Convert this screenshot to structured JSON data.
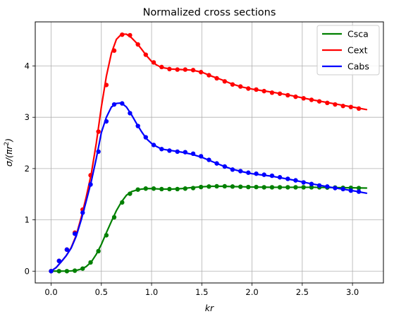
{
  "chart_data": {
    "type": "line",
    "title": "Normalized cross sections",
    "xlabel": "kr",
    "ylabel": "σ/(πr²)",
    "xlim": [
      -0.158,
      3.308
    ],
    "ylim": [
      -0.23,
      4.86
    ],
    "xticks": [
      0.0,
      0.5,
      1.0,
      1.5,
      2.0,
      2.5,
      3.0
    ],
    "xtick_labels": [
      "0.0",
      "0.5",
      "1.0",
      "1.5",
      "2.0",
      "2.5",
      "3.0"
    ],
    "yticks": [
      0,
      1,
      2,
      3,
      4
    ],
    "ytick_labels": [
      "0",
      "1",
      "2",
      "3",
      "4"
    ],
    "grid": true,
    "legend_position": "top-right",
    "series": [
      {
        "name": "Csca",
        "color": "#008000",
        "curve": [
          [
            0,
            0
          ],
          [
            0.05,
            0.0
          ],
          [
            0.1,
            0.0
          ],
          [
            0.15,
            0.001
          ],
          [
            0.2,
            0.005
          ],
          [
            0.25,
            0.015
          ],
          [
            0.3,
            0.04
          ],
          [
            0.35,
            0.09
          ],
          [
            0.4,
            0.18
          ],
          [
            0.45,
            0.33
          ],
          [
            0.5,
            0.52
          ],
          [
            0.55,
            0.75
          ],
          [
            0.6,
            0.97
          ],
          [
            0.65,
            1.18
          ],
          [
            0.7,
            1.35
          ],
          [
            0.75,
            1.48
          ],
          [
            0.8,
            1.55
          ],
          [
            0.85,
            1.58
          ],
          [
            0.9,
            1.6
          ],
          [
            0.95,
            1.61
          ],
          [
            1.0,
            1.61
          ],
          [
            1.1,
            1.6
          ],
          [
            1.2,
            1.6
          ],
          [
            1.3,
            1.61
          ],
          [
            1.4,
            1.63
          ],
          [
            1.5,
            1.645
          ],
          [
            1.6,
            1.655
          ],
          [
            1.7,
            1.655
          ],
          [
            1.8,
            1.65
          ],
          [
            1.9,
            1.645
          ],
          [
            2.0,
            1.64
          ],
          [
            2.2,
            1.635
          ],
          [
            2.4,
            1.635
          ],
          [
            2.6,
            1.635
          ],
          [
            2.8,
            1.63
          ],
          [
            3.0,
            1.625
          ],
          [
            3.14,
            1.62
          ]
        ],
        "points": [
          [
            0.0,
            0.0
          ],
          [
            0.079,
            0.0
          ],
          [
            0.157,
            0.0
          ],
          [
            0.236,
            0.01
          ],
          [
            0.314,
            0.05
          ],
          [
            0.393,
            0.17
          ],
          [
            0.471,
            0.39
          ],
          [
            0.55,
            0.7
          ],
          [
            0.628,
            1.05
          ],
          [
            0.707,
            1.34
          ],
          [
            0.785,
            1.51
          ],
          [
            0.864,
            1.59
          ],
          [
            0.942,
            1.61
          ],
          [
            1.021,
            1.61
          ],
          [
            1.1,
            1.6
          ],
          [
            1.178,
            1.6
          ],
          [
            1.257,
            1.6
          ],
          [
            1.335,
            1.61
          ],
          [
            1.414,
            1.62
          ],
          [
            1.492,
            1.64
          ],
          [
            1.571,
            1.65
          ],
          [
            1.649,
            1.655
          ],
          [
            1.728,
            1.655
          ],
          [
            1.806,
            1.65
          ],
          [
            1.885,
            1.645
          ],
          [
            1.963,
            1.64
          ],
          [
            2.042,
            1.64
          ],
          [
            2.12,
            1.635
          ],
          [
            2.199,
            1.635
          ],
          [
            2.277,
            1.635
          ],
          [
            2.356,
            1.635
          ],
          [
            2.434,
            1.635
          ],
          [
            2.513,
            1.635
          ],
          [
            2.592,
            1.635
          ],
          [
            2.67,
            1.635
          ],
          [
            2.749,
            1.63
          ],
          [
            2.827,
            1.63
          ],
          [
            2.906,
            1.625
          ],
          [
            2.984,
            1.625
          ],
          [
            3.063,
            1.62
          ]
        ]
      },
      {
        "name": "Cext",
        "color": "#ff0000",
        "curve": [
          [
            0,
            0
          ],
          [
            0.05,
            0.07
          ],
          [
            0.1,
            0.18
          ],
          [
            0.15,
            0.3
          ],
          [
            0.2,
            0.46
          ],
          [
            0.25,
            0.7
          ],
          [
            0.3,
            1.05
          ],
          [
            0.35,
            1.45
          ],
          [
            0.4,
            1.9
          ],
          [
            0.45,
            2.5
          ],
          [
            0.5,
            3.2
          ],
          [
            0.55,
            3.8
          ],
          [
            0.6,
            4.25
          ],
          [
            0.65,
            4.52
          ],
          [
            0.7,
            4.62
          ],
          [
            0.75,
            4.62
          ],
          [
            0.8,
            4.55
          ],
          [
            0.85,
            4.45
          ],
          [
            0.9,
            4.33
          ],
          [
            0.95,
            4.2
          ],
          [
            1.0,
            4.09
          ],
          [
            1.05,
            4.02
          ],
          [
            1.1,
            3.97
          ],
          [
            1.2,
            3.94
          ],
          [
            1.3,
            3.93
          ],
          [
            1.4,
            3.92
          ],
          [
            1.5,
            3.88
          ],
          [
            1.6,
            3.8
          ],
          [
            1.7,
            3.73
          ],
          [
            1.8,
            3.65
          ],
          [
            1.9,
            3.59
          ],
          [
            2.0,
            3.55
          ],
          [
            2.2,
            3.49
          ],
          [
            2.4,
            3.42
          ],
          [
            2.6,
            3.34
          ],
          [
            2.8,
            3.27
          ],
          [
            3.0,
            3.2
          ],
          [
            3.14,
            3.15
          ]
        ],
        "points": [
          [
            0.0,
            0.0
          ],
          [
            0.079,
            0.2
          ],
          [
            0.157,
            0.42
          ],
          [
            0.236,
            0.75
          ],
          [
            0.314,
            1.2
          ],
          [
            0.393,
            1.87
          ],
          [
            0.471,
            2.72
          ],
          [
            0.55,
            3.63
          ],
          [
            0.628,
            4.3
          ],
          [
            0.707,
            4.61
          ],
          [
            0.785,
            4.6
          ],
          [
            0.864,
            4.42
          ],
          [
            0.942,
            4.22
          ],
          [
            1.021,
            4.07
          ],
          [
            1.1,
            3.98
          ],
          [
            1.178,
            3.94
          ],
          [
            1.257,
            3.93
          ],
          [
            1.335,
            3.93
          ],
          [
            1.414,
            3.92
          ],
          [
            1.492,
            3.88
          ],
          [
            1.571,
            3.82
          ],
          [
            1.649,
            3.76
          ],
          [
            1.728,
            3.7
          ],
          [
            1.806,
            3.64
          ],
          [
            1.885,
            3.6
          ],
          [
            1.963,
            3.56
          ],
          [
            2.042,
            3.54
          ],
          [
            2.12,
            3.51
          ],
          [
            2.199,
            3.48
          ],
          [
            2.277,
            3.46
          ],
          [
            2.356,
            3.43
          ],
          [
            2.434,
            3.4
          ],
          [
            2.513,
            3.37
          ],
          [
            2.592,
            3.34
          ],
          [
            2.67,
            3.31
          ],
          [
            2.749,
            3.28
          ],
          [
            2.827,
            3.25
          ],
          [
            2.906,
            3.22
          ],
          [
            2.984,
            3.2
          ],
          [
            3.063,
            3.17
          ]
        ]
      },
      {
        "name": "Cabs",
        "color": "#0000ff",
        "curve": [
          [
            0,
            0
          ],
          [
            0.05,
            0.07
          ],
          [
            0.1,
            0.18
          ],
          [
            0.15,
            0.3
          ],
          [
            0.2,
            0.45
          ],
          [
            0.25,
            0.68
          ],
          [
            0.3,
            1.0
          ],
          [
            0.35,
            1.37
          ],
          [
            0.4,
            1.75
          ],
          [
            0.45,
            2.2
          ],
          [
            0.5,
            2.7
          ],
          [
            0.55,
            3.0
          ],
          [
            0.6,
            3.2
          ],
          [
            0.65,
            3.27
          ],
          [
            0.7,
            3.28
          ],
          [
            0.75,
            3.2
          ],
          [
            0.8,
            3.05
          ],
          [
            0.85,
            2.88
          ],
          [
            0.9,
            2.72
          ],
          [
            0.95,
            2.58
          ],
          [
            1.0,
            2.49
          ],
          [
            1.05,
            2.43
          ],
          [
            1.1,
            2.38
          ],
          [
            1.2,
            2.35
          ],
          [
            1.3,
            2.32
          ],
          [
            1.4,
            2.28
          ],
          [
            1.5,
            2.22
          ],
          [
            1.6,
            2.14
          ],
          [
            1.7,
            2.06
          ],
          [
            1.8,
            1.99
          ],
          [
            1.9,
            1.94
          ],
          [
            2.0,
            1.9
          ],
          [
            2.2,
            1.85
          ],
          [
            2.4,
            1.78
          ],
          [
            2.6,
            1.7
          ],
          [
            2.8,
            1.63
          ],
          [
            3.0,
            1.57
          ],
          [
            3.14,
            1.52
          ]
        ],
        "points": [
          [
            0.0,
            0.0
          ],
          [
            0.079,
            0.2
          ],
          [
            0.157,
            0.42
          ],
          [
            0.236,
            0.73
          ],
          [
            0.314,
            1.14
          ],
          [
            0.393,
            1.69
          ],
          [
            0.471,
            2.33
          ],
          [
            0.55,
            2.92
          ],
          [
            0.628,
            3.25
          ],
          [
            0.707,
            3.27
          ],
          [
            0.785,
            3.08
          ],
          [
            0.864,
            2.83
          ],
          [
            0.942,
            2.61
          ],
          [
            1.021,
            2.46
          ],
          [
            1.1,
            2.38
          ],
          [
            1.178,
            2.35
          ],
          [
            1.257,
            2.33
          ],
          [
            1.335,
            2.32
          ],
          [
            1.414,
            2.29
          ],
          [
            1.492,
            2.24
          ],
          [
            1.571,
            2.17
          ],
          [
            1.649,
            2.1
          ],
          [
            1.728,
            2.04
          ],
          [
            1.806,
            1.98
          ],
          [
            1.885,
            1.95
          ],
          [
            1.963,
            1.92
          ],
          [
            2.042,
            1.9
          ],
          [
            2.12,
            1.88
          ],
          [
            2.199,
            1.86
          ],
          [
            2.277,
            1.83
          ],
          [
            2.356,
            1.8
          ],
          [
            2.434,
            1.77
          ],
          [
            2.513,
            1.73
          ],
          [
            2.592,
            1.7
          ],
          [
            2.67,
            1.67
          ],
          [
            2.749,
            1.65
          ],
          [
            2.827,
            1.62
          ],
          [
            2.906,
            1.6
          ],
          [
            2.984,
            1.57
          ],
          [
            3.063,
            1.55
          ]
        ]
      }
    ]
  }
}
